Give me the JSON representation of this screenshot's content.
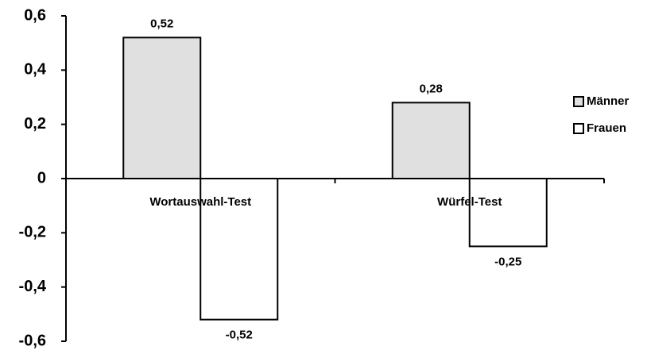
{
  "chart_data": {
    "type": "bar",
    "categories": [
      "Wortauswahl-Test",
      "Würfel-Test"
    ],
    "series": [
      {
        "name": "Männer",
        "color": "#e0e0e0",
        "values": [
          0.52,
          0.28
        ],
        "value_labels": [
          "0,52",
          "0,28"
        ]
      },
      {
        "name": "Frauen",
        "color": "#ffffff",
        "values": [
          -0.52,
          -0.25
        ],
        "value_labels": [
          "-0,52",
          "-0,25"
        ]
      }
    ],
    "ylim": [
      -0.6,
      0.6
    ],
    "yticks": [
      {
        "value": 0.6,
        "label": "0,6"
      },
      {
        "value": 0.4,
        "label": "0,4"
      },
      {
        "value": 0.2,
        "label": "0,2"
      },
      0,
      {
        "value": -0.2,
        "label": "-0,2"
      },
      {
        "value": -0.4,
        "label": "-0,4"
      },
      {
        "value": -0.6,
        "label": "-0,6"
      }
    ],
    "legend": "right"
  }
}
